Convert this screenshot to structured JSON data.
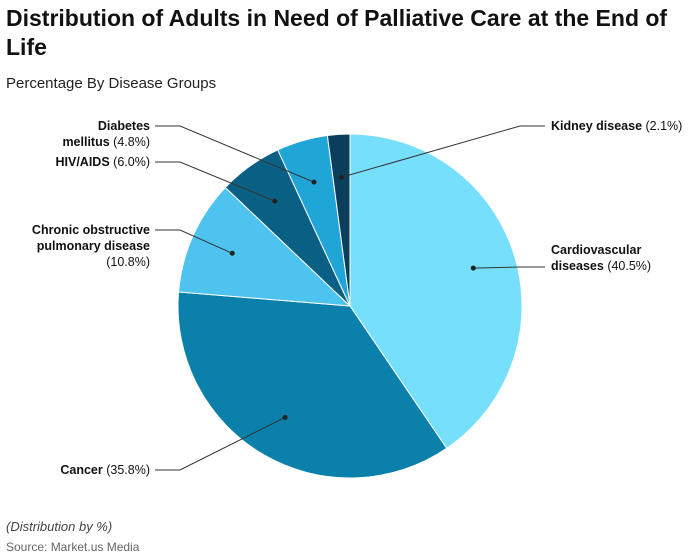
{
  "chart_data": {
    "type": "pie",
    "title": "Distribution of Adults in Need of Palliative Care at the End of Life",
    "subtitle": "Percentage By Disease Groups",
    "categories": [
      "Cardiovascular diseases",
      "Cancer",
      "Chronic obstructive pulmonary disease",
      "HIV/AIDS",
      "Diabetes mellitus",
      "Kidney disease"
    ],
    "values": [
      40.5,
      35.8,
      10.8,
      6.0,
      4.8,
      2.1
    ],
    "value_labels": [
      "(40.5%)",
      "(35.8%)",
      "(10.8%)",
      "(6.0%)",
      "(4.8%)",
      "(2.1%)"
    ],
    "colors": [
      "#76e0fc",
      "#0a80ab",
      "#4fc3ef",
      "#0a5f84",
      "#1fa5d6",
      "#0b3d5c"
    ],
    "note": "(Distribution by %)",
    "source": "Source: Market.us Media"
  }
}
